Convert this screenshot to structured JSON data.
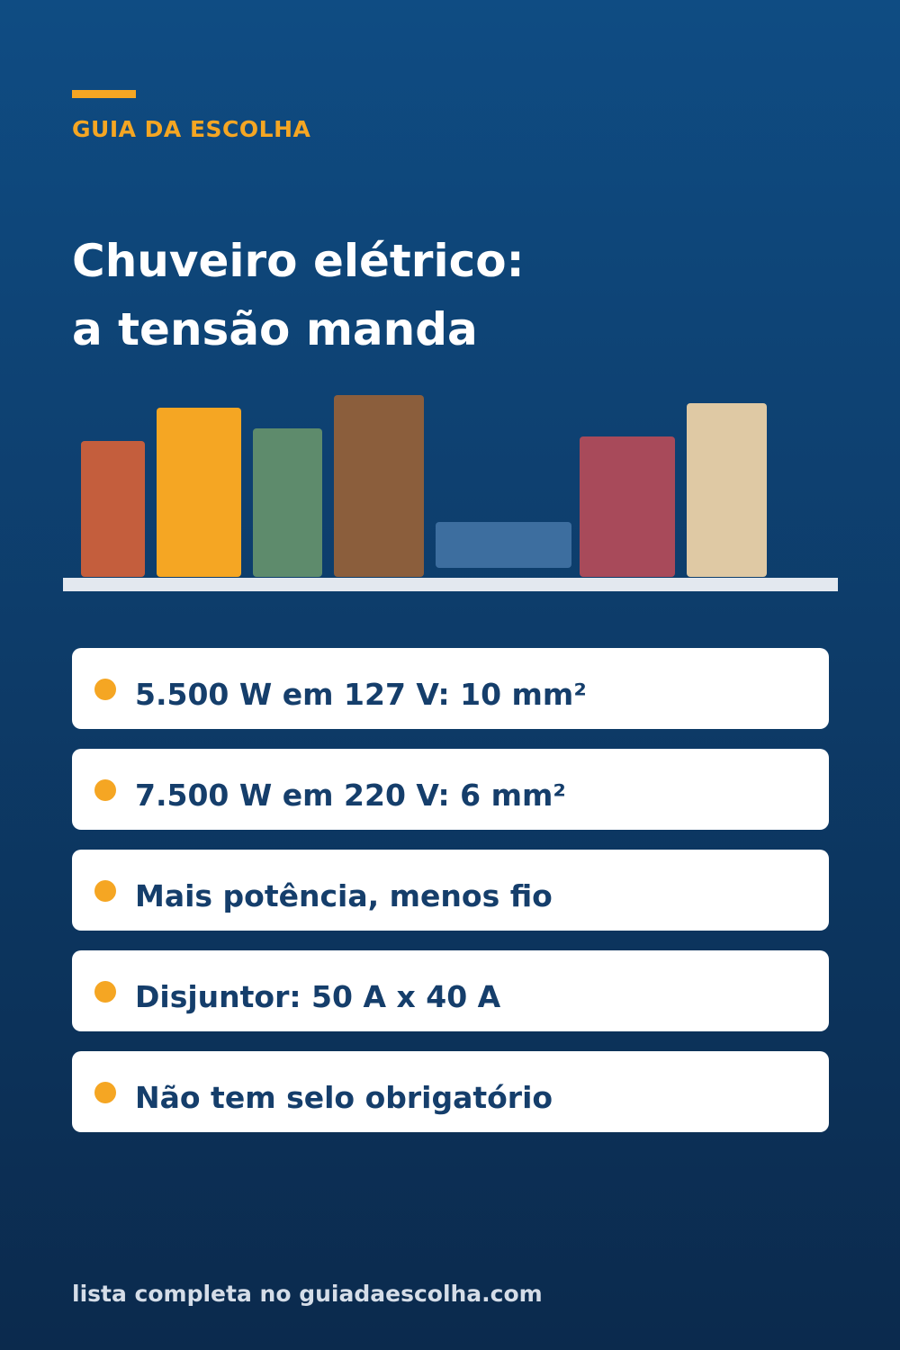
{
  "header": {
    "brand": "GUIA DA ESCOLHA",
    "title_line1": "Chuveiro elétrico:",
    "title_line2": "a tensão manda"
  },
  "illustration": {
    "book_colors": [
      "#c45e3d",
      "#f5a623",
      "#5e8b6c",
      "#8b5e3c",
      "#3d6e9f",
      "#a84a5a",
      "#dfc9a4"
    ],
    "shelf_color": "#e3e8ef"
  },
  "items": [
    {
      "text": "5.500 W em 127 V: 10 mm²"
    },
    {
      "text": "7.500 W em 220 V: 6 mm²"
    },
    {
      "text": "Mais potência, menos fio"
    },
    {
      "text": "Disjuntor: 50 A x 40 A"
    },
    {
      "text": "Não tem selo obrigatório"
    }
  ],
  "footer": {
    "text": "lista completa no guiadaescolha.com"
  },
  "colors": {
    "accent": "#f5a623",
    "item_text": "#153e6b",
    "background_top": "#0f4c83",
    "background_bottom": "#0b2a4d"
  }
}
